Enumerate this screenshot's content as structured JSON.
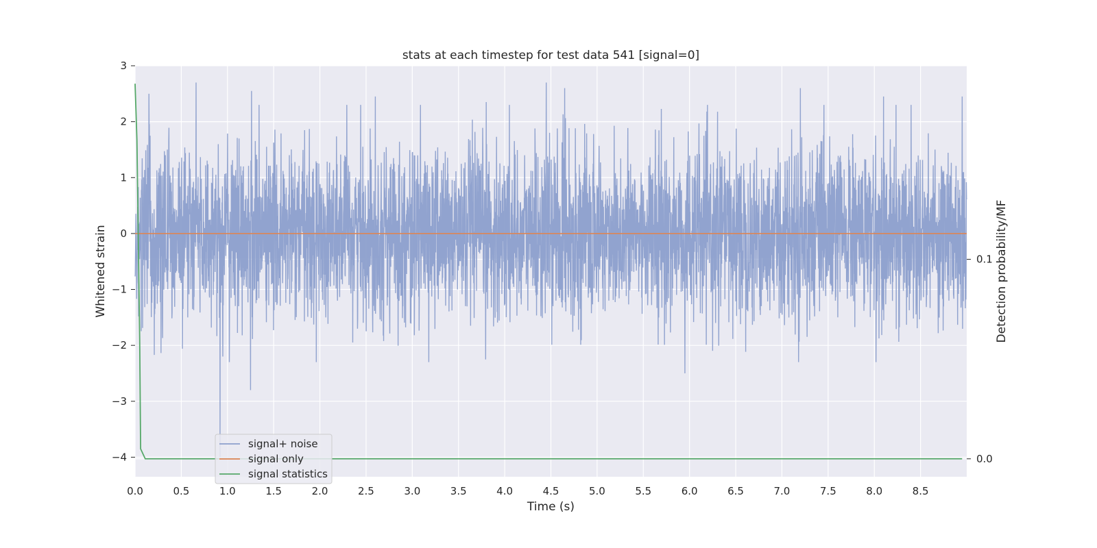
{
  "chart_data": {
    "type": "line",
    "title": "stats at each timestep for test data 541 [signal=0]",
    "xlabel": "Time (s)",
    "ylabel": "Whitened strain",
    "y2label": "Detection probability/MF",
    "xlim": [
      0.0,
      9.0
    ],
    "ylim": [
      -4.35,
      3.0
    ],
    "y2lim": [
      -0.009,
      0.197
    ],
    "xticks": [
      0.0,
      0.5,
      1.0,
      1.5,
      2.0,
      2.5,
      3.0,
      3.5,
      4.0,
      4.5,
      5.0,
      5.5,
      6.0,
      6.5,
      7.0,
      7.5,
      8.0,
      8.5
    ],
    "xtick_labels": [
      "0.0",
      "0.5",
      "1.0",
      "1.5",
      "2.0",
      "2.5",
      "3.0",
      "3.5",
      "4.0",
      "4.5",
      "5.0",
      "5.5",
      "6.0",
      "6.5",
      "7.0",
      "7.5",
      "8.0",
      "8.5"
    ],
    "yticks": [
      -4,
      -3,
      -2,
      -1,
      0,
      1,
      2,
      3
    ],
    "ytick_labels": [
      "−4",
      "−3",
      "−2",
      "−1",
      "0",
      "1",
      "2",
      "3"
    ],
    "y2ticks": [
      0.0,
      0.1
    ],
    "y2tick_labels": [
      "0.0",
      "0.1"
    ],
    "grid": true,
    "legend_position": "lower-left",
    "series": [
      {
        "name": "signal+ noise",
        "axis": "left",
        "color": "#8c9fcc",
        "description": "whitened noise, roughly Gaussian with std ~0.75 over 0–9 s; notable spikes near 0.66 s (2.7), 0.92 s (-4.0), 1.25 s (-2.8), 4.45 s (2.7), 5.95 s (-2.5)",
        "spikes": [
          [
            0.15,
            2.5
          ],
          [
            0.66,
            2.7
          ],
          [
            0.92,
            -4.0
          ],
          [
            0.95,
            -2.2
          ],
          [
            1.25,
            -2.8
          ],
          [
            1.26,
            2.55
          ],
          [
            2.6,
            2.45
          ],
          [
            3.8,
            2.35
          ],
          [
            4.45,
            2.7
          ],
          [
            4.65,
            2.6
          ],
          [
            5.95,
            -2.5
          ],
          [
            7.2,
            2.6
          ],
          [
            8.1,
            2.45
          ],
          [
            8.95,
            2.45
          ]
        ]
      },
      {
        "name": "signal only",
        "axis": "left",
        "color": "#dd8452",
        "x": [
          0.0,
          9.0
        ],
        "y": [
          0.0,
          0.0
        ]
      },
      {
        "name": "signal statistics",
        "axis": "right",
        "color": "#55a868",
        "x": [
          0.0,
          0.02,
          0.05,
          0.06,
          0.11,
          0.5,
          1.0,
          2.0,
          3.0,
          4.0,
          5.0,
          6.0,
          7.0,
          8.0,
          8.95
        ],
        "y": [
          0.188,
          0.16,
          0.06,
          0.005,
          0.0,
          0.0,
          0.0,
          0.0,
          0.0,
          0.0,
          0.0,
          0.0,
          0.0,
          0.0,
          0.0
        ]
      }
    ]
  }
}
